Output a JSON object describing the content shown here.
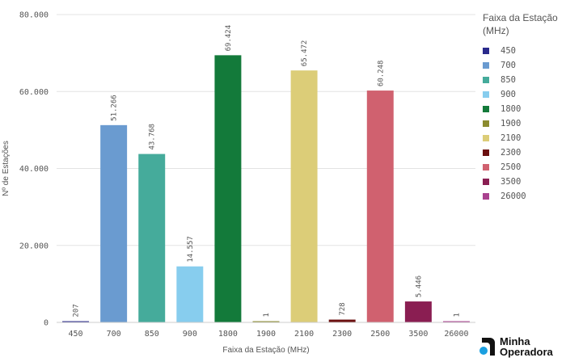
{
  "chart_data": {
    "type": "bar",
    "ylabel": "Nº de Estações",
    "xlabel": "Faixa da Estação (MHz)",
    "ylim": [
      0,
      80000
    ],
    "yticks": [
      {
        "value": 0,
        "label": "0"
      },
      {
        "value": 20000,
        "label": "20.000"
      },
      {
        "value": 40000,
        "label": "40.000"
      },
      {
        "value": 60000,
        "label": "60.000"
      },
      {
        "value": 80000,
        "label": "80.000"
      }
    ],
    "grid": "horizontal",
    "legend_position": "right",
    "legend_title": "Faixa da Estação (MHz)",
    "categories": [
      "450",
      "700",
      "850",
      "900",
      "1800",
      "1900",
      "2100",
      "2300",
      "2500",
      "3500",
      "26000"
    ],
    "values": [
      207,
      51266,
      43768,
      14557,
      69424,
      1,
      65472,
      728,
      60248,
      5446,
      1
    ],
    "value_labels": [
      "207",
      "51.266",
      "43.768",
      "14.557",
      "69.424",
      "1",
      "65.472",
      "728",
      "60.248",
      "5.446",
      "1"
    ],
    "colors": [
      "#2a2a8c",
      "#6a9bd0",
      "#45ab9b",
      "#87cdee",
      "#137a3a",
      "#8b8b2f",
      "#dccd78",
      "#6b1010",
      "#d0616f",
      "#8a1e52",
      "#a9428f"
    ]
  },
  "logo": {
    "line1": "Minha",
    "line2": "Operadora"
  }
}
